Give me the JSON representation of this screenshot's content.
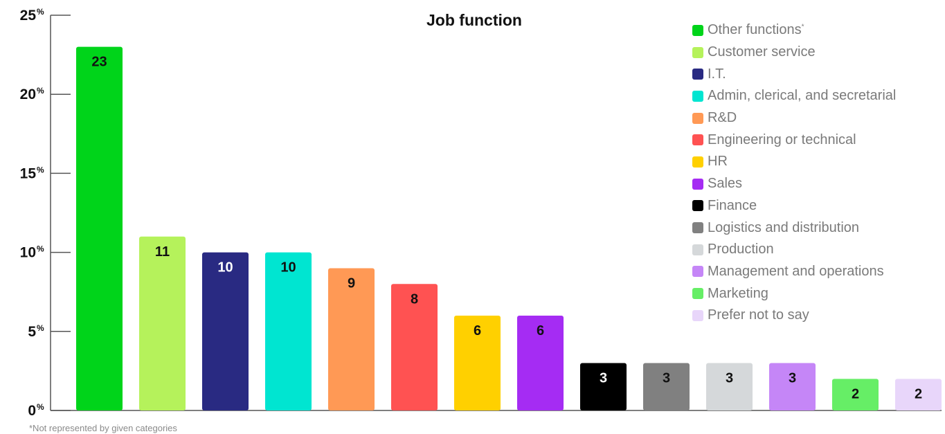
{
  "chart_data": {
    "type": "bar",
    "title": "Job function",
    "categories": [
      "Other functions",
      "Customer service",
      "I.T.",
      "Admin, clerical, and secretarial",
      "R&D",
      "Engineering or technical",
      "HR",
      "Sales",
      "Finance",
      "Logistics and distribution",
      "Production",
      "Management and operations",
      "Marketing",
      "Prefer not to say"
    ],
    "values": [
      23,
      11,
      10,
      10,
      9,
      8,
      6,
      6,
      3,
      3,
      3,
      3,
      2,
      2
    ],
    "colors": [
      "#00d41a",
      "#b5f25b",
      "#292a82",
      "#00e5d1",
      "#ff9955",
      "#ff5252",
      "#ffd000",
      "#a52cf3",
      "#000000",
      "#808080",
      "#d5d8da",
      "#c586f7",
      "#66ee66",
      "#e8d6fa"
    ],
    "label_colors": [
      "#111111",
      "#111111",
      "#ffffff",
      "#111111",
      "#111111",
      "#111111",
      "#111111",
      "#111111",
      "#ffffff",
      "#111111",
      "#111111",
      "#111111",
      "#111111",
      "#111111"
    ],
    "ylim": [
      0,
      25
    ],
    "yticks": [
      0,
      5,
      10,
      15,
      20,
      25
    ],
    "ytick_suffix": "%",
    "xlabel": "",
    "ylabel": "",
    "grid": false,
    "legend": "top-right",
    "legend_footnote_marker": "*",
    "footnote": "*Not represented by given categories"
  }
}
